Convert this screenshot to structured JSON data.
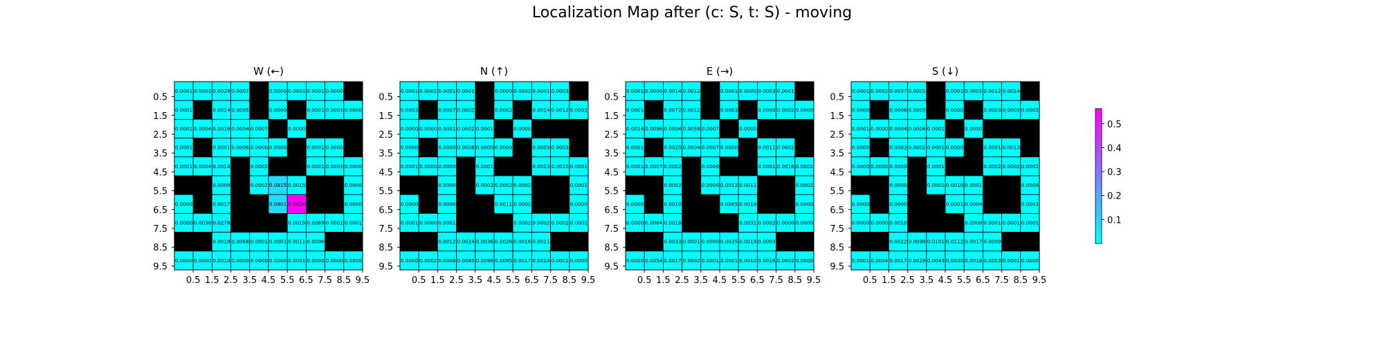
{
  "chart_data": {
    "title": "Localization Map after (c: S, t: S) - moving",
    "type": "heatmap",
    "tick_labels": [
      "0.5",
      "1.5",
      "2.5",
      "3.5",
      "4.5",
      "5.5",
      "6.5",
      "7.5",
      "8.5",
      "9.5"
    ],
    "colorbar": {
      "ticks": [
        "0.1",
        "0.2",
        "0.3",
        "0.4",
        "0.5"
      ],
      "tick_values": [
        0.1,
        0.2,
        0.3,
        0.4,
        0.5
      ],
      "range": [
        0,
        0.5628
      ],
      "colors": [
        "#00ffff",
        "#ff00ff"
      ]
    },
    "wall_color": "#000000",
    "panels": [
      {
        "title": "W (←)",
        "values": [
          [
            "0.0001",
            "0.0003",
            "0.0028",
            "0.0007",
            null,
            "0.0000",
            "0.0001",
            "0.0001",
            "0.0000",
            null
          ],
          [
            "0.0001",
            null,
            "0.0014",
            "0.0095",
            null,
            "0.0000",
            null,
            "0.0001",
            "0.0003",
            "0.0000"
          ],
          [
            "0.0001",
            "0.0004",
            "0.0016",
            "0.0004",
            "0.0007",
            null,
            "0.0000",
            null,
            null,
            null
          ],
          [
            "0.0001",
            null,
            "0.0001",
            "0.0006",
            "0.0000",
            "0.0000",
            null,
            "0.0001",
            "0.0000",
            null
          ],
          [
            "0.0001",
            "0.0004",
            "0.0014",
            null,
            "0.0002",
            null,
            null,
            "0.0001",
            "0.0003",
            "0.0000"
          ],
          [
            null,
            null,
            "0.0009",
            null,
            "0.0002",
            "0.0815",
            "0.0015",
            null,
            null,
            "0.0000"
          ],
          [
            "0.0000",
            null,
            "0.0017",
            null,
            null,
            "0.0801",
            "0.5628",
            null,
            null,
            "0.0000"
          ],
          [
            "0.0000",
            "0.0038",
            "0.0278",
            null,
            null,
            null,
            "0.0019",
            "0.0069",
            "0.0002",
            "0.0001"
          ],
          [
            null,
            null,
            "0.0018",
            "0.0068",
            "0.0001",
            "0.0001",
            "0.0011",
            "0.0006",
            null,
            null
          ],
          [
            "0.0000",
            "0.0000",
            "0.0010",
            "0.0000",
            "0.0000",
            "0.0000",
            "0.0001",
            "0.0000",
            "0.0000",
            "0.0000"
          ]
        ]
      },
      {
        "title": "N (↑)",
        "values": [
          [
            "0.0001",
            "0.0002",
            "0.0001",
            "0.0001",
            null,
            "0.0000",
            "0.0002",
            "0.0001",
            "0.0003",
            null
          ],
          [
            "0.0003",
            null,
            "0.0007",
            "0.0002",
            null,
            "0.0002",
            null,
            "0.0014",
            "0.0012",
            "0.0002"
          ],
          [
            "0.0000",
            "0.0000",
            "0.0001",
            "0.0002",
            "0.0001",
            null,
            "0.0000",
            null,
            null,
            null
          ],
          [
            "0.0000",
            null,
            "0.0000",
            "0.0008",
            "0.0000",
            "0.0000",
            null,
            "0.0003",
            "0.0003",
            null
          ],
          [
            "0.0001",
            "0.0000",
            "0.0000",
            null,
            "0.0001",
            null,
            null,
            "0.0013",
            "0.0010",
            "0.0001"
          ],
          [
            null,
            null,
            "0.0000",
            null,
            "0.0002",
            "0.0002",
            "0.0002",
            null,
            null,
            "0.0001"
          ],
          [
            "0.0000",
            null,
            "0.0000",
            null,
            null,
            "0.0011",
            "0.0002",
            null,
            null,
            "0.0000"
          ],
          [
            "0.0001",
            "0.0000",
            "0.0001",
            null,
            null,
            null,
            "0.0002",
            "0.0002",
            "0.0002",
            "0.0001"
          ],
          [
            null,
            null,
            "0.0012",
            "0.0024",
            "0.0036",
            "0.0026",
            "0.0016",
            "0.0011",
            null,
            null
          ],
          [
            "0.0000",
            "0.0002",
            "0.0006",
            "0.0085",
            "0.0096",
            "0.0095",
            "0.0017",
            "0.0014",
            "0.0001",
            "0.0000"
          ]
        ]
      },
      {
        "title": "E (→)",
        "values": [
          [
            "0.0001",
            "0.0000",
            "0.0014",
            "0.0012",
            null,
            "0.0001",
            "0.0000",
            "0.0003",
            "0.0001",
            null
          ],
          [
            "0.0001",
            null,
            "0.0072",
            "0.0012",
            null,
            "0.0003",
            null,
            "0.0000",
            "0.0002",
            "0.0000"
          ],
          [
            "0.0014",
            "0.0096",
            "0.0004",
            "0.0058",
            "0.0007",
            null,
            "0.0000",
            null,
            null,
            null
          ],
          [
            "0.0001",
            null,
            "0.0025",
            "0.0004",
            "0.0007",
            "0.0000",
            null,
            "0.0011",
            "0.0002",
            null
          ],
          [
            "0.0001",
            "0.0007",
            "0.0002",
            null,
            "0.0000",
            null,
            null,
            "0.0001",
            "0.0016",
            "0.0002"
          ],
          [
            null,
            null,
            "0.0002",
            null,
            "0.0000",
            "0.0012",
            "0.0011",
            null,
            null,
            "0.0002"
          ],
          [
            "0.0000",
            null,
            "0.0010",
            null,
            null,
            "0.0065",
            "0.0019",
            null,
            null,
            "0.0000"
          ],
          [
            "0.0000",
            "0.0064",
            "0.0018",
            null,
            null,
            null,
            "0.0031",
            "0.0002",
            "0.0000",
            "0.0000"
          ],
          [
            null,
            null,
            "0.0033",
            "0.0001",
            "0.0000",
            "0.0035",
            "0.0019",
            "0.0003",
            null,
            null
          ],
          [
            "0.0000",
            "0.0054",
            "0.0017",
            "0.0002",
            "0.0001",
            "0.0001",
            "0.0010",
            "0.0016",
            "0.0002",
            "0.0000"
          ]
        ]
      },
      {
        "title": "S (↓)",
        "values": [
          [
            "0.0001",
            "0.0002",
            "0.0037",
            "0.0001",
            null,
            "0.0001",
            "0.0002",
            "0.0012",
            "0.0014",
            null
          ],
          [
            "0.0000",
            null,
            "0.0006",
            "0.0005",
            null,
            "0.0000",
            null,
            "0.0003",
            "0.0003",
            "0.0002"
          ],
          [
            "0.0001",
            "0.0000",
            "0.0004",
            "0.0006",
            "0.0001",
            null,
            "0.0000",
            null,
            null,
            null
          ],
          [
            "0.0000",
            null,
            "0.0002",
            "0.0002",
            "0.0001",
            "0.0000",
            null,
            "0.0001",
            "0.0013",
            null
          ],
          [
            "0.0000",
            "0.0000",
            "0.0000",
            null,
            "0.0001",
            null,
            null,
            "0.0002",
            "0.0002",
            "0.0002"
          ],
          [
            null,
            null,
            "0.0000",
            null,
            "0.0001",
            "0.0010",
            "0.0001",
            null,
            null,
            "0.0000"
          ],
          [
            "0.0000",
            null,
            "0.0000",
            null,
            null,
            "0.0001",
            "0.0004",
            null,
            null,
            "0.0003"
          ],
          [
            "0.0000",
            "0.0000",
            "0.0010",
            null,
            null,
            null,
            "0.0008",
            "0.0001",
            "0.0001",
            "0.0001"
          ],
          [
            null,
            null,
            "0.0022",
            "0.0099",
            "0.0101",
            "0.0112",
            "0.0017",
            "0.0009",
            null,
            null
          ],
          [
            "0.0001",
            "0.0004",
            "0.0017",
            "0.0028",
            "0.0043",
            "0.0030",
            "0.0018",
            "0.0003",
            "0.0001",
            "0.0000"
          ]
        ]
      }
    ]
  }
}
